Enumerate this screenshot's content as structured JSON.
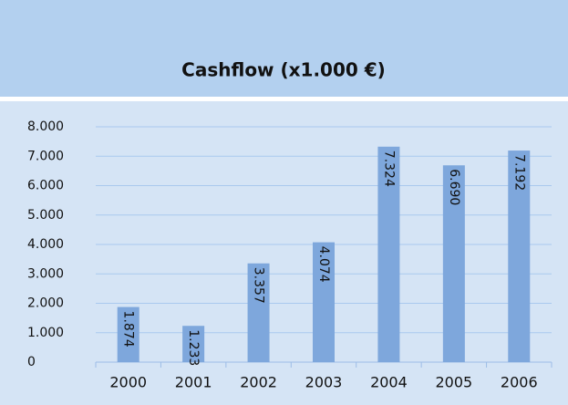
{
  "chart_data": {
    "type": "bar",
    "title": "Cashflow (x1.000 €)",
    "categories": [
      "2000",
      "2001",
      "2002",
      "2003",
      "2004",
      "2005",
      "2006"
    ],
    "values": [
      1874,
      1233,
      3357,
      4074,
      7324,
      6690,
      7192
    ],
    "value_labels": [
      "1.874",
      "1.233",
      "3.357",
      "4.074",
      "7.324",
      "6.690",
      "7.192"
    ],
    "color": "#7ea7dc",
    "ylim": [
      0,
      8000
    ],
    "yticks": [
      0,
      {
        "value": 1000,
        "label": "1.000"
      },
      {
        "value": 2000,
        "label": "2.000"
      },
      {
        "value": 3000,
        "label": "3.000"
      },
      {
        "value": 4000,
        "label": "4.000"
      },
      {
        "value": 5000,
        "label": "5.000"
      },
      {
        "value": 6000,
        "label": "6.000"
      },
      {
        "value": 7000,
        "label": "7.000"
      },
      {
        "value": 8000,
        "label": "8.000"
      }
    ],
    "grid": true
  }
}
